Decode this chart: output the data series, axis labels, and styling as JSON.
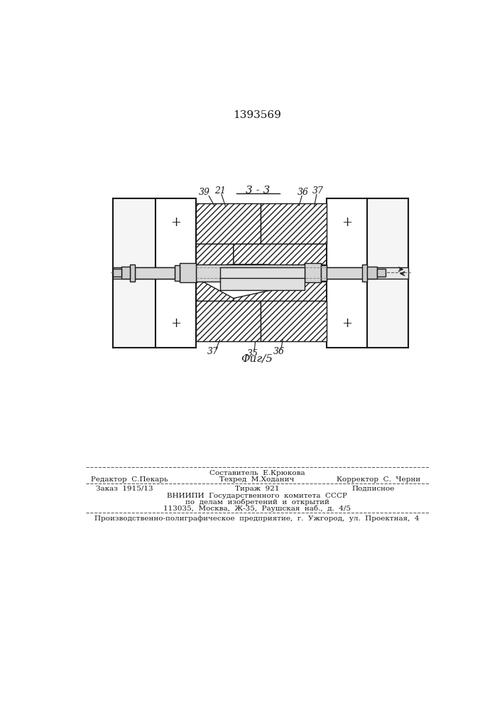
{
  "patent_number": "1393569",
  "section_label": "3 - 3",
  "figure_label": "Φиг/5",
  "bg_color": "#ffffff",
  "line_color": "#1a1a1a",
  "footer": {
    "col1_row1": "Редактор  С.Пекарь",
    "col2_row0": "Составитель  Е.Крюкова",
    "col2_row1": "Техред  М.Ходанич",
    "col3_row1": "Корректор  С.  Черни",
    "order": "Заказ  1915/13",
    "tirazh": "Тираж  921",
    "podpisnoe": "Подписное",
    "vnipi1": "ВНИИПИ  Государственного  комитета  СССР",
    "vnipi2": "по  делам  изобретений  и  открытий",
    "vnipi3": "113035,  Москва,  Ж-35,  Раушская  наб.,  д.  4/5",
    "bottom": "Производственно-полиграфическое  предприятие,  г.  Ужгород,  ул.  Проектная,  4"
  }
}
